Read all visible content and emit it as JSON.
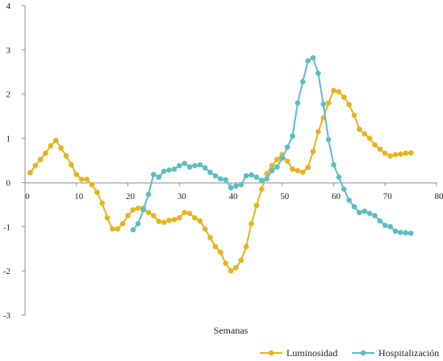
{
  "chart_data": {
    "type": "line",
    "title": "",
    "xlabel": "Semanas",
    "ylabel": "",
    "xlim": [
      0,
      80
    ],
    "ylim": [
      -3,
      4
    ],
    "x_ticks": [
      0,
      10,
      20,
      30,
      40,
      50,
      60,
      70,
      80
    ],
    "y_ticks": [
      4,
      3,
      2,
      1,
      0,
      -1,
      -2,
      -3
    ],
    "x_tick_labels": [
      "0",
      "10",
      "20",
      "30",
      "40",
      "50",
      "60",
      "70",
      "80"
    ],
    "y_tick_labels": [
      "4",
      "3",
      "2",
      "1",
      "0",
      "-1",
      "-2",
      "-3"
    ],
    "grid": false,
    "legend_position": "bottom-right",
    "series": [
      {
        "name": "Luminosidad",
        "color": "#E8B31C",
        "x": [
          1,
          2,
          3,
          4,
          5,
          6,
          7,
          8,
          9,
          10,
          11,
          12,
          13,
          14,
          15,
          16,
          17,
          18,
          19,
          20,
          21,
          22,
          23,
          24,
          25,
          26,
          27,
          28,
          29,
          30,
          31,
          32,
          33,
          34,
          35,
          36,
          37,
          38,
          39,
          40,
          41,
          42,
          43,
          44,
          45,
          46,
          47,
          48,
          49,
          50,
          51,
          52,
          53,
          54,
          55,
          56,
          57,
          58,
          59,
          60,
          61,
          62,
          63,
          64,
          65,
          66,
          67,
          68,
          69,
          70,
          71,
          72,
          73,
          74,
          75
        ],
        "y": [
          0.22,
          0.38,
          0.52,
          0.66,
          0.83,
          0.95,
          0.78,
          0.6,
          0.4,
          0.18,
          0.07,
          0.07,
          -0.05,
          -0.22,
          -0.47,
          -0.8,
          -1.05,
          -1.05,
          -0.93,
          -0.75,
          -0.62,
          -0.58,
          -0.58,
          -0.68,
          -0.75,
          -0.88,
          -0.9,
          -0.86,
          -0.84,
          -0.8,
          -0.68,
          -0.7,
          -0.8,
          -0.87,
          -1.05,
          -1.25,
          -1.45,
          -1.58,
          -1.83,
          -2.0,
          -1.93,
          -1.76,
          -1.45,
          -0.93,
          -0.52,
          -0.15,
          0.2,
          0.38,
          0.52,
          0.63,
          0.48,
          0.3,
          0.27,
          0.23,
          0.34,
          0.7,
          1.15,
          1.46,
          1.8,
          2.08,
          2.05,
          1.93,
          1.76,
          1.52,
          1.2,
          1.1,
          1.0,
          0.85,
          0.75,
          0.66,
          0.6,
          0.63,
          0.64,
          0.66,
          0.67
        ]
      },
      {
        "name": "Hospitalización",
        "color": "#5BBEC4",
        "x": [
          21,
          22,
          23,
          24,
          25,
          26,
          27,
          28,
          29,
          30,
          31,
          32,
          33,
          34,
          35,
          36,
          37,
          38,
          39,
          40,
          41,
          42,
          43,
          44,
          45,
          46,
          47,
          48,
          49,
          50,
          51,
          52,
          53,
          54,
          55,
          56,
          57,
          58,
          59,
          60,
          61,
          62,
          63,
          64,
          65,
          66,
          67,
          68,
          69,
          70,
          71,
          72,
          73,
          74,
          75
        ],
        "y": [
          -1.07,
          -0.93,
          -0.62,
          -0.27,
          0.18,
          0.12,
          0.25,
          0.28,
          0.3,
          0.38,
          0.43,
          0.35,
          0.38,
          0.4,
          0.33,
          0.23,
          0.15,
          0.08,
          0.06,
          -0.12,
          -0.08,
          -0.05,
          0.15,
          0.17,
          0.12,
          0.05,
          0.08,
          0.27,
          0.35,
          0.55,
          0.8,
          1.05,
          1.8,
          2.28,
          2.75,
          2.82,
          2.47,
          1.77,
          0.97,
          0.4,
          0.12,
          -0.15,
          -0.4,
          -0.55,
          -0.68,
          -0.65,
          -0.7,
          -0.75,
          -0.87,
          -0.97,
          -1.0,
          -1.1,
          -1.13,
          -1.14,
          -1.15
        ]
      }
    ]
  }
}
